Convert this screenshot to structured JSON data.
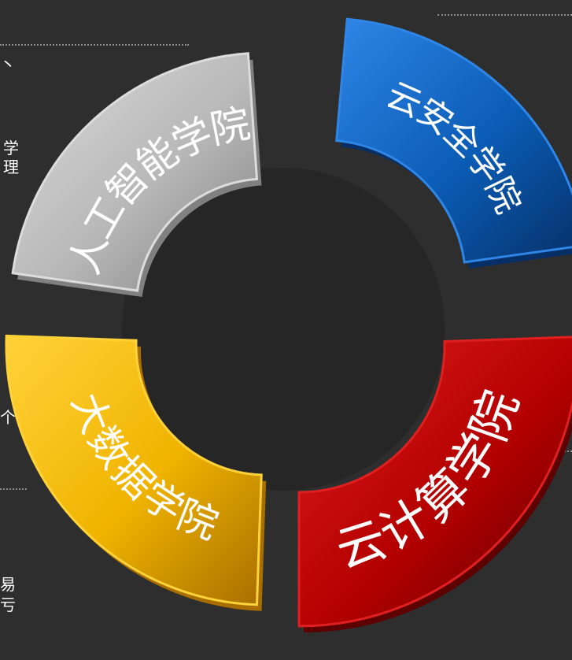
{
  "segments": [
    {
      "id": "cloud-security",
      "label": "云安全学院",
      "color": "#0b5cb5",
      "light": "#2f86e6",
      "dark": "#062f66"
    },
    {
      "id": "cloud-computing",
      "label": "云计算学院",
      "color": "#b30000",
      "light": "#e02020",
      "dark": "#5c0000"
    },
    {
      "id": "big-data",
      "label": "大数据学院",
      "color": "#f0b400",
      "light": "#ffd23a",
      "dark": "#a86e00"
    },
    {
      "id": "ai",
      "label": "人工智能学院",
      "color": "#b8b8b8",
      "light": "#dcdcdc",
      "dark": "#808080"
    }
  ],
  "edge_fragments": {
    "top_left": "丶",
    "mid_left_1": "学",
    "mid_left_2": "理",
    "lower_left": "个",
    "bottom_left_1": "易",
    "bottom_left_2": "亏"
  },
  "colors": {
    "background": "#2e2e2e",
    "hub": "#262626",
    "dotted_line": "#8a8a8a"
  }
}
